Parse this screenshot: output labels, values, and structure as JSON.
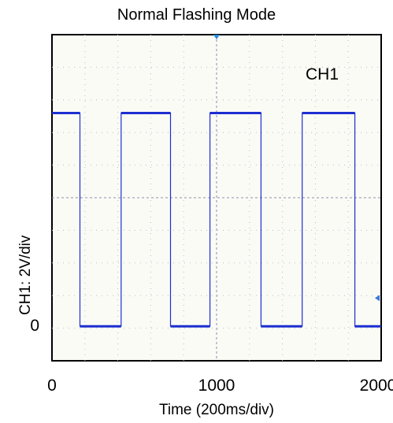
{
  "chart_data": {
    "type": "line",
    "title": "Normal Flashing Mode",
    "xlabel": "Time (200ms/div)",
    "ylabel": "CH1: 2V/div",
    "xlim": [
      0,
      2000
    ],
    "x_ticks": [
      "0",
      "1000",
      "2000"
    ],
    "y_ticks": [
      "0"
    ],
    "grid": true,
    "series": [
      {
        "name": "CH1",
        "color": "#1c2fd0",
        "x": [
          0,
          170,
          170,
          420,
          420,
          720,
          720,
          960,
          960,
          1270,
          1270,
          1520,
          1520,
          1840,
          1840,
          2000
        ],
        "y": [
          6.8,
          6.8,
          0,
          0,
          6.8,
          6.8,
          0,
          0,
          6.8,
          6.8,
          0,
          0,
          6.8,
          6.8,
          0,
          0
        ]
      }
    ],
    "ylim": [
      -1.1,
      9.3
    ]
  }
}
